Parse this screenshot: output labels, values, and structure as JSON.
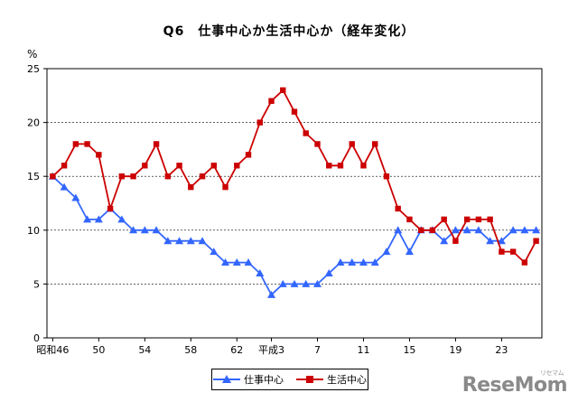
{
  "chart_data": {
    "type": "line",
    "title": "Q6　仕事中心か生活中心か（経年変化）",
    "ylabel": "%",
    "ylim": [
      0,
      25
    ],
    "yticks": [
      0,
      5,
      10,
      15,
      20,
      25
    ],
    "x_tick_labels": [
      {
        "index": 0,
        "label": "昭和46"
      },
      {
        "index": 4,
        "label": "50"
      },
      {
        "index": 8,
        "label": "54"
      },
      {
        "index": 12,
        "label": "58"
      },
      {
        "index": 16,
        "label": "62"
      },
      {
        "index": 19,
        "label": "平成3"
      },
      {
        "index": 23,
        "label": "7"
      },
      {
        "index": 27,
        "label": "11"
      },
      {
        "index": 31,
        "label": "15"
      },
      {
        "index": 35,
        "label": "19"
      },
      {
        "index": 39,
        "label": "23"
      }
    ],
    "grid": "horizontal",
    "legend_position": "bottom",
    "series": [
      {
        "name": "仕事中心",
        "color": "#3366ff",
        "marker": "triangle",
        "values": [
          15,
          14,
          13,
          11,
          11,
          12,
          11,
          10,
          10,
          10,
          9,
          9,
          9,
          9,
          8,
          7,
          7,
          7,
          6,
          4,
          5,
          5,
          5,
          5,
          6,
          7,
          7,
          7,
          7,
          8,
          10,
          8,
          10,
          10,
          9,
          10,
          10,
          10,
          9,
          9,
          10,
          10,
          10
        ]
      },
      {
        "name": "生活中心",
        "color": "#cc0000",
        "marker": "square",
        "values": [
          15,
          16,
          18,
          18,
          17,
          12,
          15,
          15,
          16,
          18,
          15,
          16,
          14,
          15,
          16,
          14,
          16,
          17,
          20,
          22,
          23,
          21,
          19,
          18,
          16,
          16,
          18,
          16,
          18,
          15,
          12,
          11,
          10,
          10,
          11,
          9,
          11,
          11,
          11,
          8,
          8,
          7,
          9
        ]
      }
    ]
  },
  "watermark": {
    "text": "ReseMom",
    "small": "リセマム"
  }
}
